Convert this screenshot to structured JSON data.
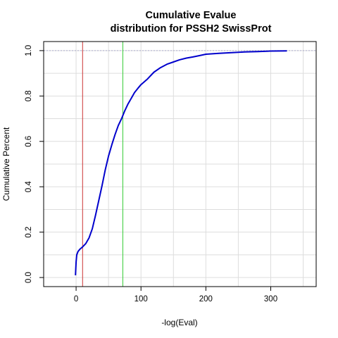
{
  "chart_data": {
    "type": "line",
    "title_lines": [
      "Cumulative Evalue",
      "distribution for PSSH2 SwissProt"
    ],
    "xlabel": "-log(Eval)",
    "ylabel": "Cumulative Percent",
    "xlim": [
      -50,
      370
    ],
    "ylim": [
      -0.04,
      1.04
    ],
    "x_ticks": [
      0,
      100,
      200,
      300
    ],
    "x_tick_labels": [
      "0",
      "100",
      "200",
      "300"
    ],
    "y_ticks": [
      0.0,
      0.2,
      0.4,
      0.6,
      0.8,
      1.0
    ],
    "y_tick_labels": [
      "0.0",
      "0.2",
      "0.4",
      "0.6",
      "0.8",
      "1.0"
    ],
    "grid": true,
    "vertical_lines": [
      {
        "x": 10,
        "color": "#cc3333"
      },
      {
        "x": 72,
        "color": "#33cc33"
      }
    ],
    "reference_line": {
      "y": 1.0,
      "color": "#aaaacc"
    },
    "series": [
      {
        "color": "#0000cc",
        "x": [
          -1,
          0,
          1,
          3,
          6,
          10,
          15,
          20,
          25,
          30,
          35,
          40,
          45,
          50,
          55,
          60,
          65,
          70,
          75,
          80,
          85,
          90,
          95,
          100,
          110,
          120,
          130,
          140,
          150,
          160,
          170,
          180,
          190,
          200,
          220,
          240,
          260,
          280,
          300,
          325
        ],
        "y": [
          0.01,
          0.07,
          0.1,
          0.115,
          0.125,
          0.135,
          0.15,
          0.175,
          0.215,
          0.275,
          0.34,
          0.405,
          0.475,
          0.535,
          0.585,
          0.63,
          0.67,
          0.7,
          0.735,
          0.765,
          0.79,
          0.815,
          0.833,
          0.85,
          0.875,
          0.905,
          0.925,
          0.94,
          0.95,
          0.96,
          0.967,
          0.972,
          0.978,
          0.984,
          0.988,
          0.991,
          0.994,
          0.996,
          0.998,
          0.999
        ]
      }
    ]
  }
}
